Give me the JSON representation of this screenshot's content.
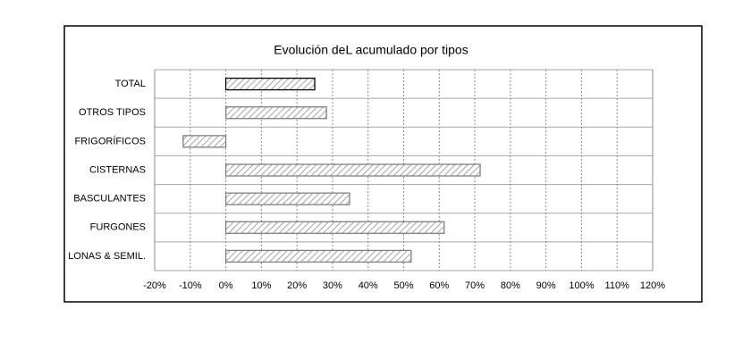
{
  "chart_data": {
    "type": "barh",
    "title": "Evolución deL acumulado por tipos",
    "categories": [
      "TOTAL",
      "OTROS TIPOS",
      "FRIGORÍFICOS",
      "CISTERNAS",
      "BASCULANTES",
      "FURGONES",
      "LONAS & SEMIL."
    ],
    "values": [
      25,
      28.3,
      -12,
      71.5,
      34.8,
      61.4,
      52.1
    ],
    "color": "#bfbfbf",
    "edge_colors": [
      "#000000",
      "#808080",
      "#808080",
      "#808080",
      "#808080",
      "#808080",
      "#808080"
    ],
    "xlim": [
      -20,
      120
    ],
    "xticks": [
      {
        "value": -20,
        "label": "-20%"
      },
      {
        "value": -10,
        "label": "-10%"
      },
      {
        "value": 0,
        "label": "0%"
      },
      {
        "value": 10,
        "label": "10%"
      },
      {
        "value": 20,
        "label": "20%"
      },
      {
        "value": 30,
        "label": "30%"
      },
      {
        "value": 40,
        "label": "40%"
      },
      {
        "value": 50,
        "label": "50%"
      },
      {
        "value": 60,
        "label": "60%"
      },
      {
        "value": 70,
        "label": "70%"
      },
      {
        "value": 80,
        "label": "80%"
      },
      {
        "value": 90,
        "label": "90%"
      },
      {
        "value": 100,
        "label": "100%"
      },
      {
        "value": 110,
        "label": "110%"
      },
      {
        "value": 120,
        "label": "120%"
      }
    ],
    "grid": true
  }
}
